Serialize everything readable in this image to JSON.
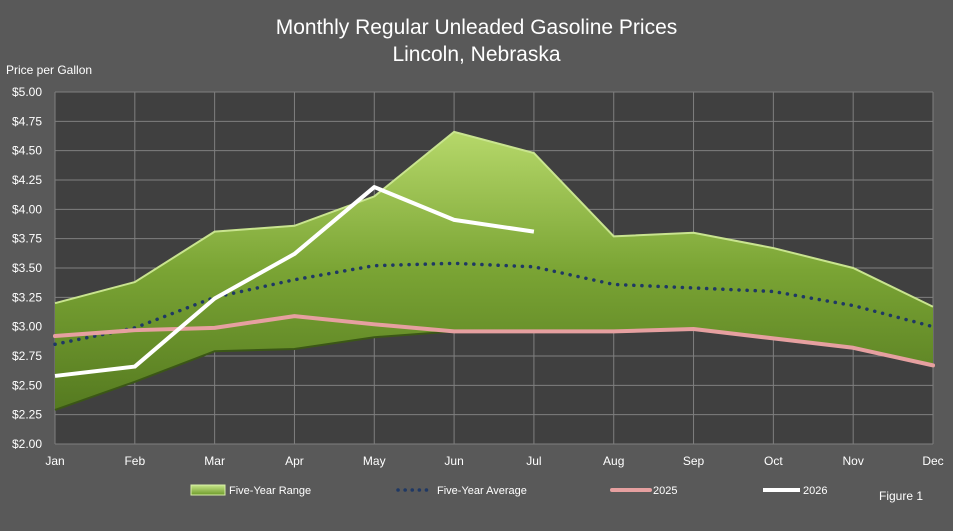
{
  "chart_data": {
    "type": "line",
    "title": "Monthly Regular Unleaded Gasoline Prices",
    "subtitle": "Lincoln, Nebraska",
    "ylabel": "Price per Gallon",
    "xlabel": "",
    "categories": [
      "Jan",
      "Feb",
      "Mar",
      "Apr",
      "May",
      "Jun",
      "Jul",
      "Aug",
      "Sep",
      "Oct",
      "Nov",
      "Dec"
    ],
    "ylim": [
      2.0,
      5.0
    ],
    "yticks": [
      2.0,
      2.25,
      2.5,
      2.75,
      3.0,
      3.25,
      3.5,
      3.75,
      4.0,
      4.25,
      4.5,
      4.75,
      5.0
    ],
    "ytick_labels": [
      "$2.00",
      "$2.25",
      "$2.50",
      "$2.75",
      "$3.00",
      "$3.25",
      "$3.50",
      "$3.75",
      "$4.00",
      "$4.25",
      "$4.50",
      "$4.75",
      "$5.00"
    ],
    "grid": true,
    "legend_position": "bottom",
    "range": {
      "name": "Five-Year Range",
      "low": [
        2.29,
        2.53,
        2.79,
        2.81,
        2.91,
        2.96,
        2.96,
        2.96,
        2.98,
        2.9,
        2.82,
        2.67
      ],
      "high": [
        3.2,
        3.38,
        3.81,
        3.86,
        4.11,
        4.66,
        4.48,
        3.77,
        3.8,
        3.67,
        3.5,
        3.17
      ],
      "color": "#77a130"
    },
    "series": [
      {
        "name": "Five-Year Average",
        "style": "dotted",
        "color": "#1f3864",
        "values": [
          2.85,
          2.99,
          3.25,
          3.4,
          3.52,
          3.54,
          3.51,
          3.36,
          3.33,
          3.3,
          3.18,
          3.0
        ]
      },
      {
        "name": "2025",
        "style": "solid",
        "color": "#e6a0a0",
        "values": [
          2.92,
          2.97,
          2.99,
          3.09,
          3.02,
          2.96,
          2.96,
          2.96,
          2.98,
          2.9,
          2.82,
          2.67
        ]
      },
      {
        "name": "2026",
        "style": "solid",
        "color": "#ffffff",
        "values": [
          2.58,
          2.66,
          3.24,
          3.62,
          4.19,
          3.91,
          3.81,
          null,
          null,
          null,
          null,
          null
        ]
      }
    ]
  },
  "figure_label": "Figure 1"
}
